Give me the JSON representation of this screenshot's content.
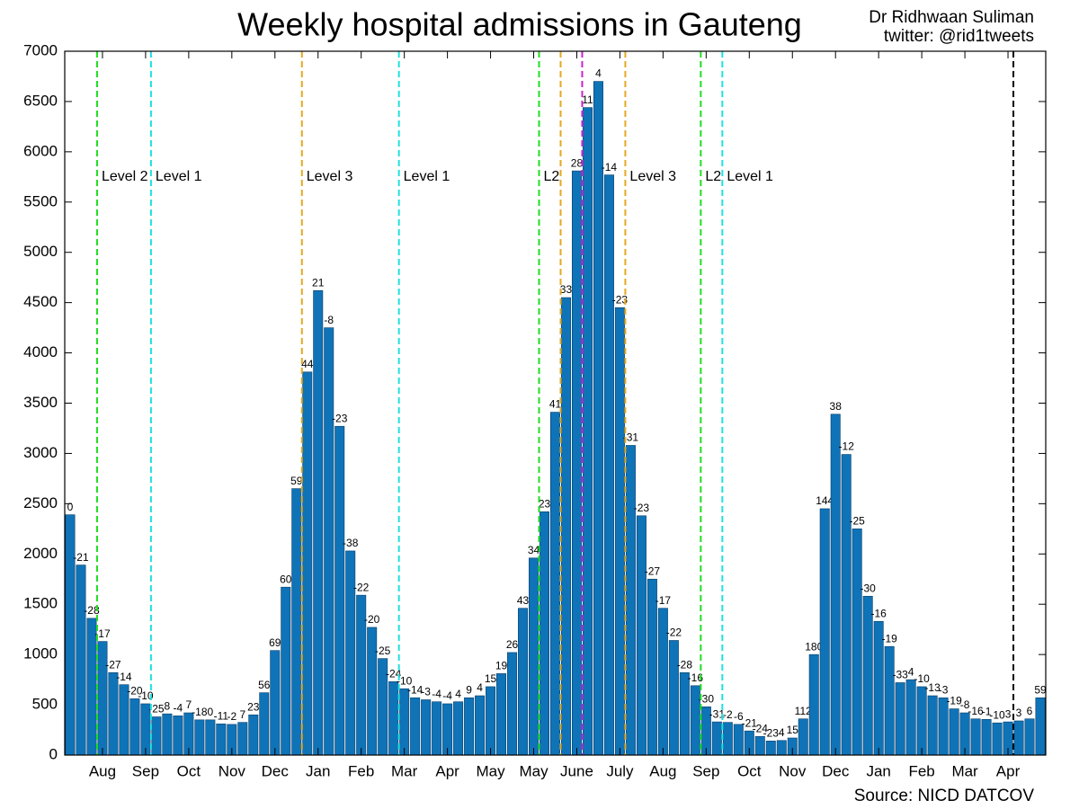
{
  "chart_data": {
    "type": "bar",
    "title": "Weekly hospital admissions in Gauteng",
    "author": "Dr Ridhwaan Suliman",
    "twitter": "twitter: @rid1tweets",
    "source": "Source: NICD DATCOV",
    "color": "#0f73b8",
    "categories": [
      null,
      null,
      null,
      "Aug",
      null,
      null,
      null,
      "Sep",
      null,
      null,
      null,
      "Oct",
      null,
      null,
      null,
      "Nov",
      null,
      null,
      null,
      "Dec",
      null,
      null,
      null,
      "Jan",
      null,
      null,
      null,
      "Feb",
      null,
      null,
      null,
      "Mar",
      null,
      null,
      null,
      "Apr",
      null,
      null,
      null,
      "May",
      null,
      null,
      null,
      "May",
      null,
      null,
      null,
      "June",
      null,
      null,
      null,
      "July",
      null,
      null,
      null,
      "Aug",
      null,
      null,
      null,
      "Sep",
      null,
      null,
      null,
      "Oct",
      null,
      null,
      null,
      "Nov",
      null,
      null,
      null,
      "Dec",
      null,
      null,
      null,
      "Jan",
      null,
      null,
      null,
      "Feb",
      null,
      null,
      null,
      "Mar",
      null,
      null,
      null,
      "Apr",
      null,
      null,
      null
    ],
    "values": [
      2390,
      1890,
      1360,
      1130,
      820,
      700,
      560,
      510,
      380,
      410,
      390,
      420,
      350,
      350,
      310,
      305,
      325,
      400,
      620,
      1040,
      1670,
      2650,
      3810,
      4620,
      4250,
      3270,
      2030,
      1590,
      1270,
      960,
      730,
      660,
      570,
      550,
      530,
      510,
      530,
      570,
      590,
      680,
      810,
      1020,
      1460,
      1960,
      2420,
      3410,
      4550,
      5810,
      6440,
      6700,
      5770,
      4450,
      3080,
      2380,
      1750,
      1460,
      1140,
      820,
      690,
      480,
      330,
      325,
      305,
      240,
      185,
      140,
      145,
      170,
      360,
      1000,
      2450,
      3390,
      2990,
      2250,
      1580,
      1330,
      1080,
      720,
      750,
      680,
      590,
      570,
      460,
      420,
      360,
      355,
      320,
      330,
      340,
      360,
      570
    ],
    "changes": [
      0,
      -21,
      -28,
      -17,
      -27,
      -14,
      -20,
      -10,
      -25,
      8,
      -4,
      7,
      -18,
      0,
      -11,
      -2,
      7,
      23,
      56,
      69,
      60,
      59,
      44,
      21,
      -8,
      -23,
      -38,
      -22,
      -20,
      -25,
      -24,
      -10,
      -14,
      -3,
      -4,
      -4,
      4,
      9,
      4,
      15,
      19,
      26,
      43,
      34,
      23,
      41,
      33,
      28,
      11,
      4,
      -14,
      -23,
      -31,
      -23,
      -27,
      -17,
      -22,
      -28,
      -16,
      -30,
      -31,
      -2,
      -6,
      -21,
      -24,
      -23,
      4,
      15,
      112,
      180,
      144,
      38,
      -12,
      -25,
      -30,
      -16,
      -19,
      -33,
      4,
      -10,
      -13,
      -3,
      -19,
      -8,
      -16,
      -1,
      -10,
      3,
      3,
      6,
      59
    ],
    "ylim": [
      0,
      7000
    ],
    "yticks": [
      0,
      500,
      1000,
      1500,
      2000,
      2500,
      3000,
      3500,
      4000,
      4500,
      5000,
      5500,
      6000,
      6500,
      7000
    ],
    "events": [
      {
        "x": 3,
        "color": "#22dd22",
        "label": "Level 2"
      },
      {
        "x": 8,
        "color": "#22e0e0",
        "label": "Level 1"
      },
      {
        "x": 22,
        "color": "#e5a823",
        "label": "Level 3"
      },
      {
        "x": 31,
        "color": "#22e0e0",
        "label": "Level 1"
      },
      {
        "x": 44,
        "color": "#22dd22",
        "label": "L2"
      },
      {
        "x": 46,
        "color": "#e5a823"
      },
      {
        "x": 48,
        "color": "#cc22cc"
      },
      {
        "x": 52,
        "color": "#e5a823",
        "label": "Level 3"
      },
      {
        "x": 59,
        "color": "#22dd22",
        "label": "L2"
      },
      {
        "x": 61,
        "color": "#22e0e0",
        "label": "Level 1"
      },
      {
        "x": 88,
        "color": "#000000"
      }
    ]
  }
}
